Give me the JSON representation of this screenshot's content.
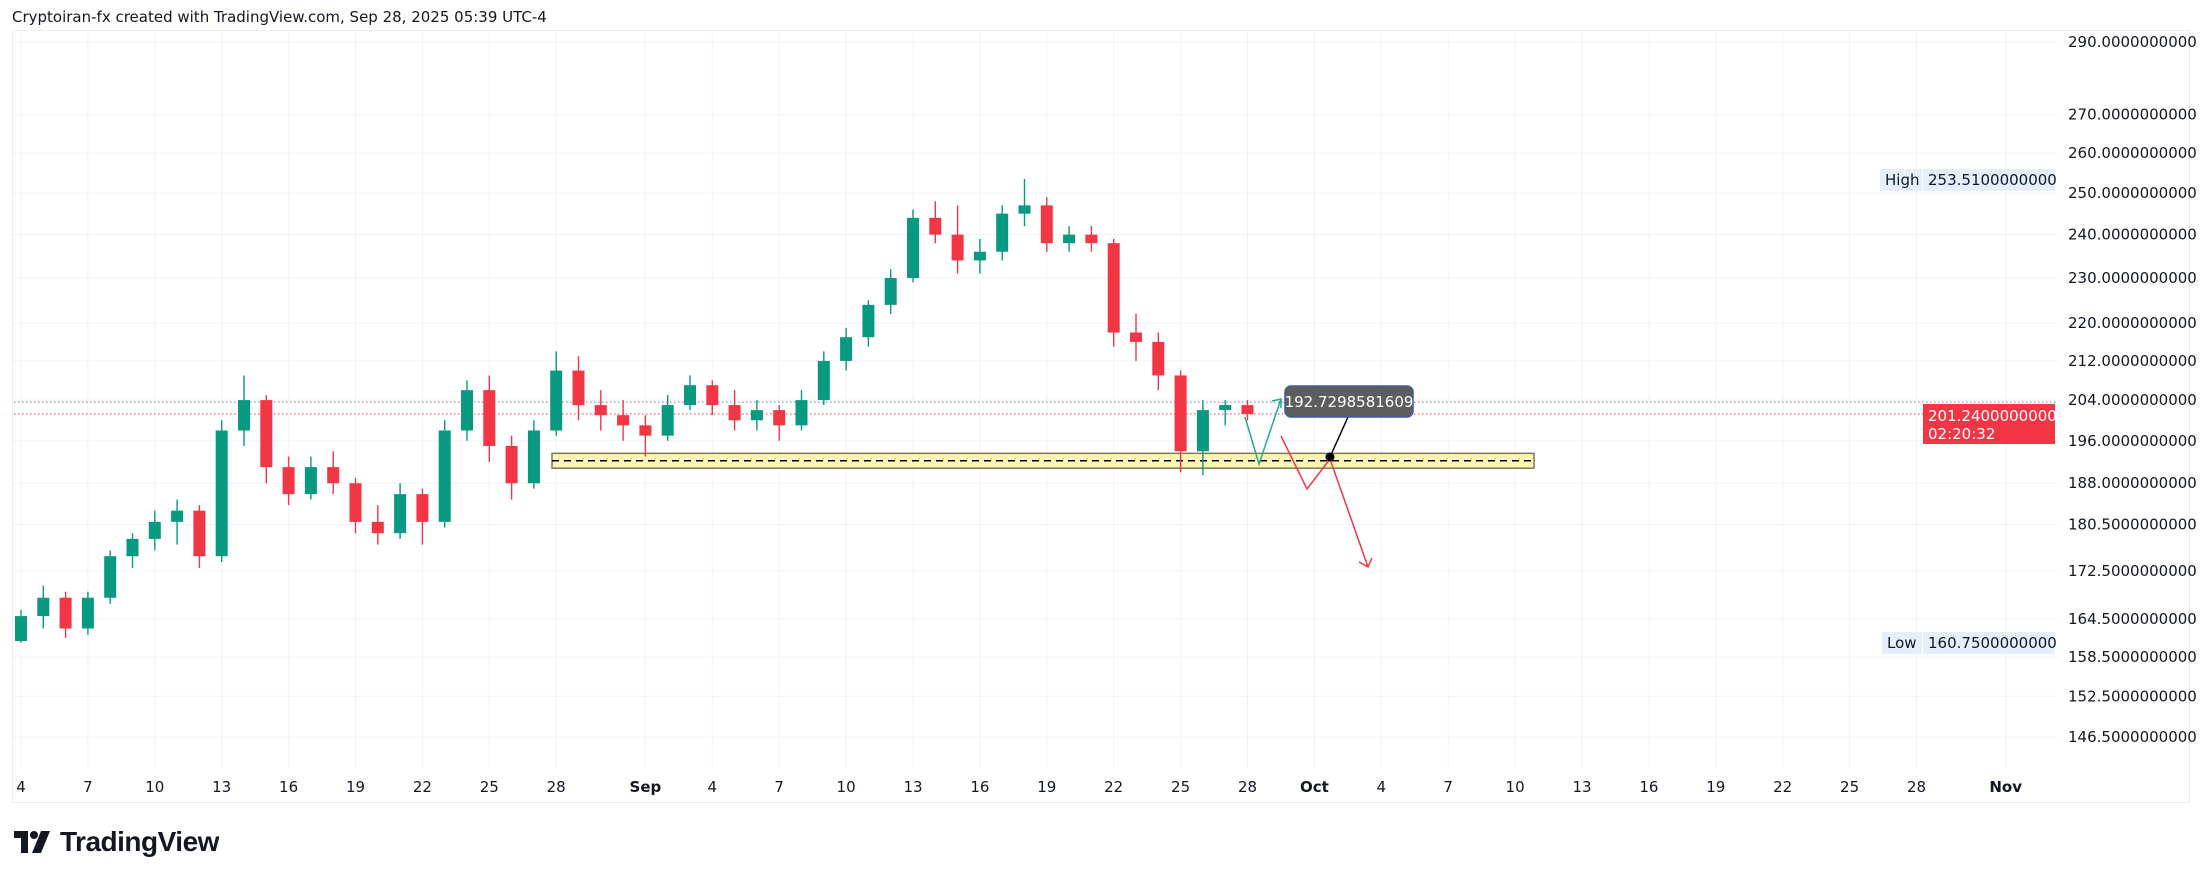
{
  "header": {
    "attribution": "Cryptoiran-fx created with TradingView.com, Sep 28, 2025 05:39 UTC-4"
  },
  "brand": {
    "logo_text": "TradingView"
  },
  "colors": {
    "up": "#089981",
    "down": "#f23645",
    "zone_fill": "#fff6b0",
    "zone_border": "#7a7a55",
    "grid": "#f0f3fa",
    "high_low_bg": "#e3effd",
    "last_price_bg": "#f23645",
    "callout_bg": "#5d5d5d",
    "callout_border": "#3b5aa8"
  },
  "chart_data": {
    "type": "candlestick",
    "title": "",
    "scale": "log",
    "ylim": [
      140,
      300
    ],
    "start_date": "Aug 4",
    "interval": "1D",
    "ohlc": [
      [
        161,
        166,
        160.75,
        165
      ],
      [
        165,
        170,
        163,
        168
      ],
      [
        168,
        169,
        161.5,
        163
      ],
      [
        163,
        169,
        162,
        168
      ],
      [
        168,
        176,
        167,
        175
      ],
      [
        175,
        179,
        173,
        178
      ],
      [
        178,
        183,
        176,
        181
      ],
      [
        181,
        185,
        177,
        183
      ],
      [
        183,
        184,
        173,
        175
      ],
      [
        175,
        200,
        174,
        198
      ],
      [
        198,
        209,
        195,
        204
      ],
      [
        204,
        205,
        188,
        191
      ],
      [
        191,
        193,
        184,
        186
      ],
      [
        186,
        193,
        185,
        191
      ],
      [
        191,
        194,
        186,
        188
      ],
      [
        188,
        189,
        179,
        181
      ],
      [
        181,
        184,
        177,
        179
      ],
      [
        179,
        188,
        178,
        186
      ],
      [
        186,
        187,
        177,
        181
      ],
      [
        181,
        200,
        180,
        198
      ],
      [
        198,
        208,
        196,
        206
      ],
      [
        206,
        209,
        192,
        195
      ],
      [
        195,
        197,
        185,
        188
      ],
      [
        188,
        200,
        187,
        198
      ],
      [
        198,
        214,
        197,
        210
      ],
      [
        210,
        213,
        200,
        203
      ],
      [
        203,
        206,
        198,
        201
      ],
      [
        201,
        204,
        196,
        199
      ],
      [
        199,
        201,
        193,
        197
      ],
      [
        197,
        205,
        196,
        203
      ],
      [
        203,
        209,
        202,
        207
      ],
      [
        207,
        208,
        201,
        203
      ],
      [
        203,
        206,
        198,
        200
      ],
      [
        200,
        204,
        198,
        202
      ],
      [
        202,
        203,
        196,
        199
      ],
      [
        199,
        206,
        198,
        204
      ],
      [
        204,
        214,
        203,
        212
      ],
      [
        212,
        219,
        210,
        217
      ],
      [
        217,
        225,
        215,
        224
      ],
      [
        224,
        232,
        222,
        230
      ],
      [
        230,
        246,
        229,
        244
      ],
      [
        244,
        248,
        238,
        240
      ],
      [
        240,
        247,
        231,
        234
      ],
      [
        234,
        239,
        231,
        236
      ],
      [
        236,
        247,
        234,
        245
      ],
      [
        245,
        253.51,
        242,
        247
      ],
      [
        247,
        249,
        236,
        238
      ],
      [
        238,
        242,
        236,
        240
      ],
      [
        240,
        242,
        236,
        238
      ],
      [
        238,
        239,
        215,
        218
      ],
      [
        218,
        222,
        212,
        216
      ],
      [
        216,
        218,
        206,
        209
      ],
      [
        209,
        210,
        190,
        194
      ],
      [
        194,
        204,
        189.5,
        202
      ],
      [
        202,
        204,
        199,
        203
      ],
      [
        203,
        204,
        200,
        201.24
      ]
    ],
    "y_ticks": [
      "290.0000000000",
      "270.0000000000",
      "260.0000000000",
      "250.0000000000",
      "240.0000000000",
      "230.0000000000",
      "220.0000000000",
      "212.0000000000",
      "204.0000000000",
      "196.0000000000",
      "188.0000000000",
      "180.5000000000",
      "172.5000000000",
      "164.5000000000",
      "158.5000000000",
      "152.5000000000",
      "146.5000000000"
    ],
    "x_ticks": [
      {
        "label": "4",
        "day": 0
      },
      {
        "label": "7",
        "day": 3
      },
      {
        "label": "10",
        "day": 6
      },
      {
        "label": "13",
        "day": 9
      },
      {
        "label": "16",
        "day": 12
      },
      {
        "label": "19",
        "day": 15
      },
      {
        "label": "22",
        "day": 18
      },
      {
        "label": "25",
        "day": 21
      },
      {
        "label": "28",
        "day": 24
      },
      {
        "label": "Sep",
        "day": 28
      },
      {
        "label": "4",
        "day": 31
      },
      {
        "label": "7",
        "day": 34
      },
      {
        "label": "10",
        "day": 37
      },
      {
        "label": "13",
        "day": 40
      },
      {
        "label": "16",
        "day": 43
      },
      {
        "label": "19",
        "day": 46
      },
      {
        "label": "22",
        "day": 49
      },
      {
        "label": "25",
        "day": 52
      },
      {
        "label": "28",
        "day": 55
      },
      {
        "label": "Oct",
        "day": 58
      },
      {
        "label": "4",
        "day": 61
      },
      {
        "label": "7",
        "day": 64
      },
      {
        "label": "10",
        "day": 67
      },
      {
        "label": "13",
        "day": 70
      },
      {
        "label": "16",
        "day": 73
      },
      {
        "label": "19",
        "day": 76
      },
      {
        "label": "22",
        "day": 79
      },
      {
        "label": "25",
        "day": 82
      },
      {
        "label": "28",
        "day": 85
      },
      {
        "label": "Nov",
        "day": 89
      }
    ],
    "high": {
      "label": "High",
      "value": "253.5100000000"
    },
    "low": {
      "label": "Low",
      "value": "160.7500000000"
    },
    "last_price": {
      "value": "201.2400000000",
      "countdown": "02:20:32"
    },
    "support_zone": {
      "top": 193.6,
      "bottom": 190.8,
      "mid": 192.2
    },
    "callout": {
      "value": "192.7298581609"
    }
  }
}
